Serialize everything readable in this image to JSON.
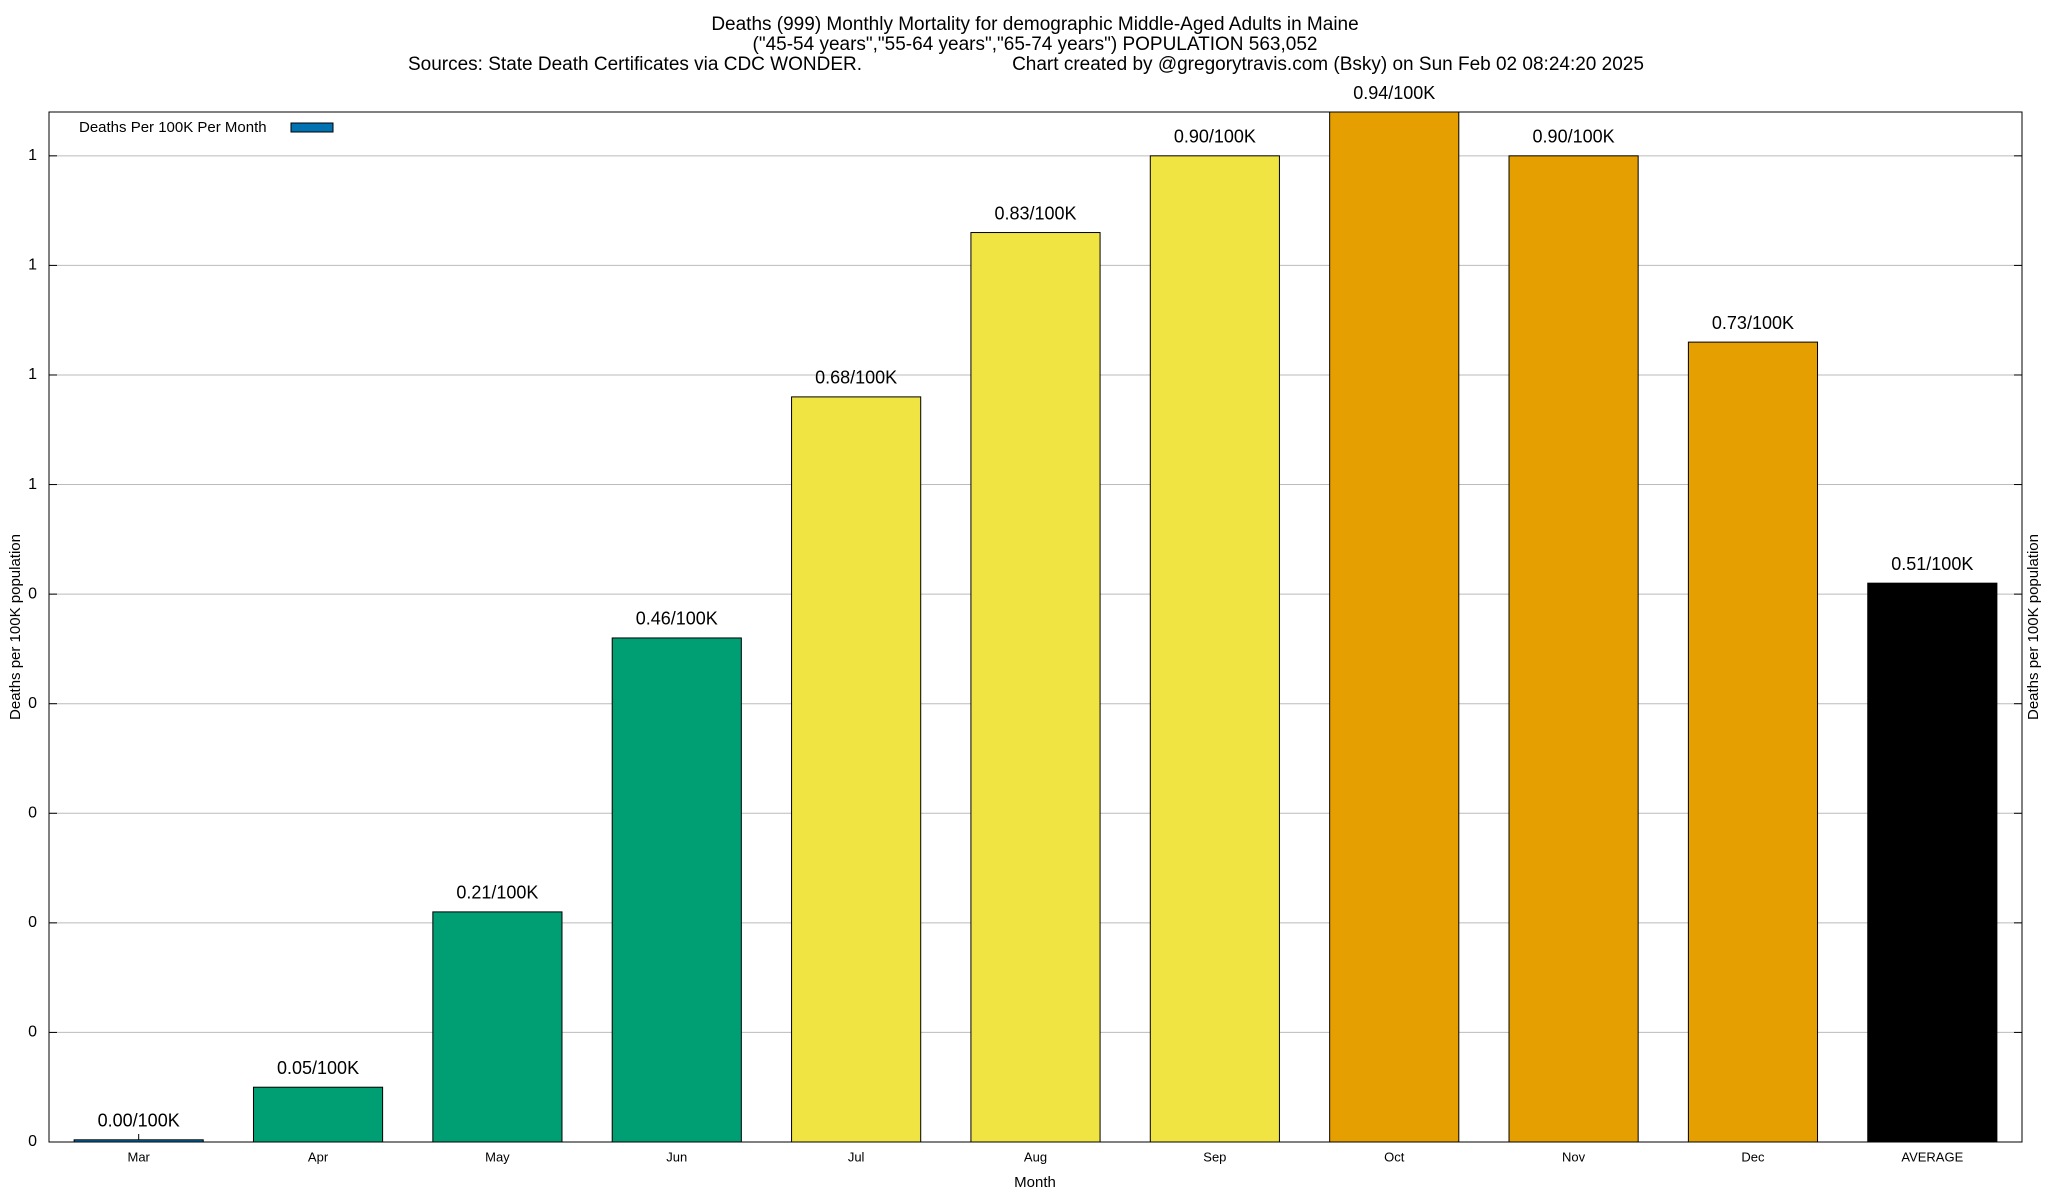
{
  "chart_data": {
    "type": "bar",
    "title": "Deaths (999) Monthly Mortality for demographic Middle-Aged Adults in Maine",
    "subtitle": "(\"45-54 years\",\"55-64 years\",\"65-74 years\") POPULATION 563,052",
    "sources": "Sources: State Death Certificates via CDC WONDER.",
    "credit": "Chart created by @gregorytravis.com (Bsky) on Sun Feb 02 08:24:20 2025",
    "x_label": "Month",
    "y_label": "Deaths per 100K population",
    "y2_label": "Deaths per 100K population",
    "categories": [
      "Mar",
      "Apr",
      "May",
      "Jun",
      "Jul",
      "Aug",
      "Sep",
      "Oct",
      "Nov",
      "Dec",
      "AVERAGE"
    ],
    "series": [
      {
        "name": "Deaths Per 100K Per Month",
        "color": "#0072b2",
        "values": [
          0.002,
          0.05,
          0.21,
          0.46,
          0.68,
          0.83,
          0.9,
          0.94,
          0.9,
          0.73,
          0.51
        ],
        "value_labels": [
          "0.00/100K",
          "0.05/100K",
          "0.21/100K",
          "0.46/100K",
          "0.68/100K",
          "0.83/100K",
          "0.90/100K",
          "0.94/100K",
          "0.90/100K",
          "0.73/100K",
          "0.51/100K"
        ],
        "bar_colors": [
          "#0072b2",
          "#009e73",
          "#009e73",
          "#009e73",
          "#f0e442",
          "#f0e442",
          "#f0e442",
          "#e69f00",
          "#e69f00",
          "#e69f00",
          "#000000"
        ]
      }
    ],
    "ylim": [
      0,
      0.94
    ],
    "yticks": [
      0,
      {
        "value": 0.1,
        "label": "0"
      },
      {
        "value": 0.2,
        "label": "0"
      },
      {
        "value": 0.3,
        "label": "0"
      },
      {
        "value": 0.4,
        "label": "0"
      },
      {
        "value": 0.5,
        "label": "0"
      },
      {
        "value": 0.6,
        "label": "1"
      },
      {
        "value": 0.7,
        "label": "1"
      },
      {
        "value": 0.8,
        "label": "1"
      },
      {
        "value": 0.9,
        "label": "1"
      }
    ],
    "grid": true,
    "legend": "top-left"
  }
}
